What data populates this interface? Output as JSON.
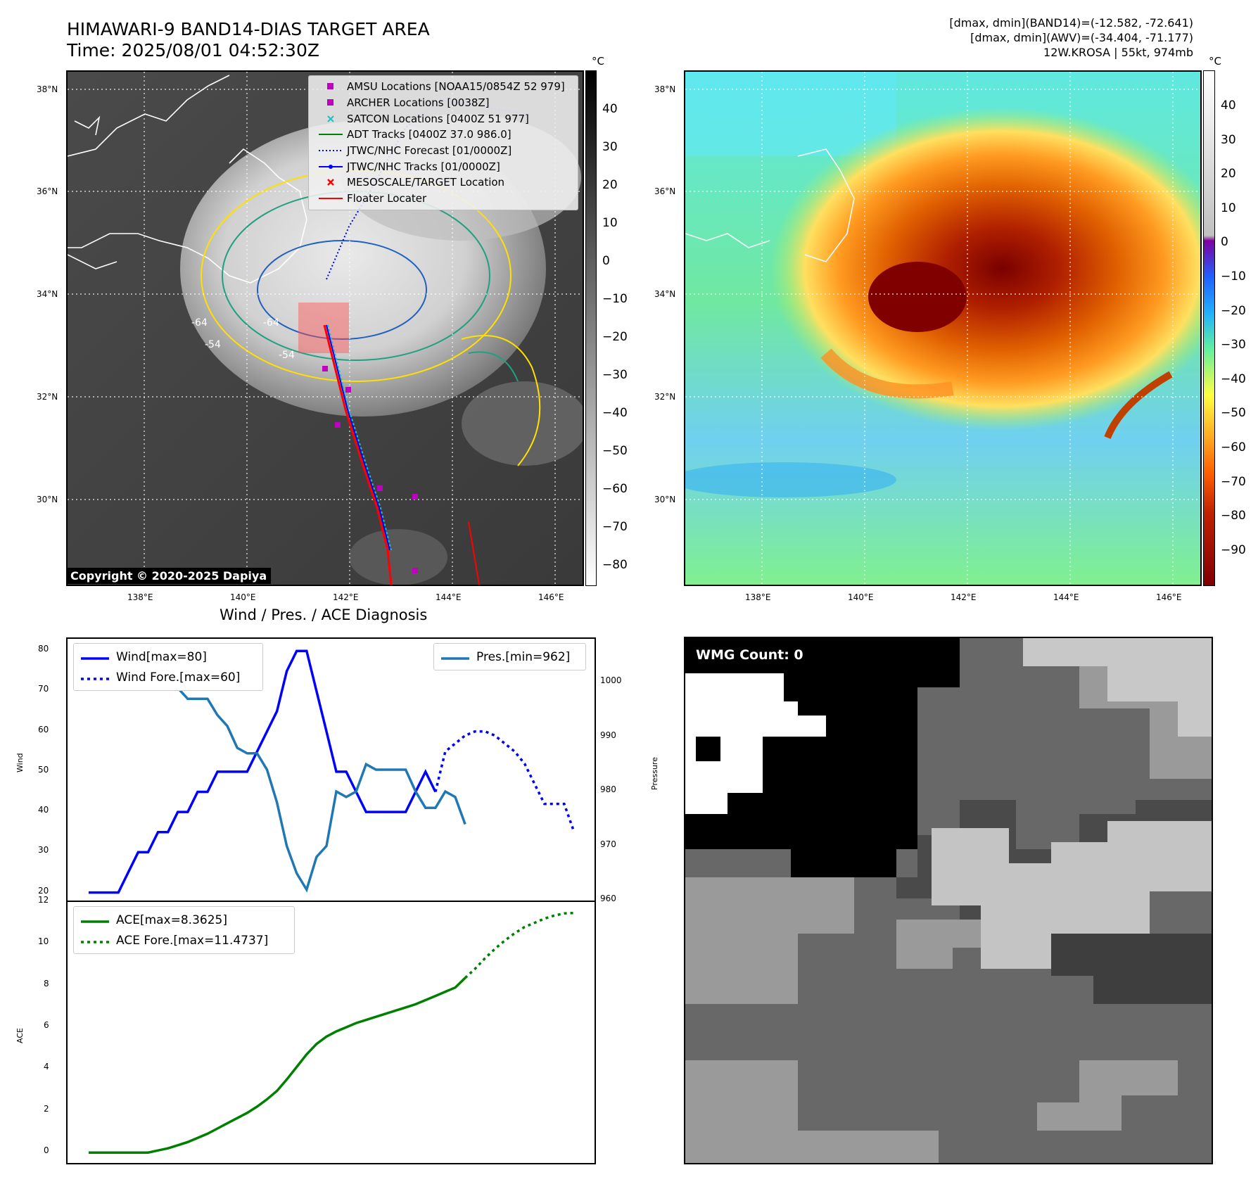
{
  "header": {
    "title": "HIMAWARI-9 BAND14-DIAS TARGET AREA",
    "time": "Time: 2025/08/01 04:52:30Z",
    "stats_band14": "[dmax, dmin](BAND14)=(-12.582, -72.641)",
    "stats_awv": "[dmax, dmin](AWV)=(-34.404, -71.177)",
    "storm": "12W.KROSA | 55kt, 974mb"
  },
  "map": {
    "lat_labels": [
      "38°N",
      "36°N",
      "34°N",
      "32°N",
      "30°N"
    ],
    "lon_labels": [
      "138°E",
      "140°E",
      "142°E",
      "144°E",
      "146°E"
    ],
    "copyright": "Copyright © 2020-2025 Dapiya",
    "contour_labels": [
      "-64",
      "-64",
      "-54",
      "-54"
    ],
    "legend": [
      {
        "label": "AMSU Locations [NOAA15/0854Z 52 979]",
        "symbol": "square",
        "color": "#c000c0"
      },
      {
        "label": "ARCHER Locations [0038Z]",
        "symbol": "square",
        "color": "#c000c0"
      },
      {
        "label": "SATCON Locations [0400Z 51 977]",
        "symbol": "x",
        "color": "#20c0c0"
      },
      {
        "label": "ADT Tracks [0400Z 37.0 986.0]",
        "symbol": "line",
        "color": "#008000"
      },
      {
        "label": "JTWC/NHC Forecast [01/0000Z]",
        "symbol": "dotted",
        "color": "#0000ff"
      },
      {
        "label": "JTWC/NHC Tracks [01/0000Z]",
        "symbol": "line-dot",
        "color": "#0000ff"
      },
      {
        "label": "MESOSCALE/TARGET Location",
        "symbol": "x",
        "color": "#ff0000"
      },
      {
        "label": "Floater Locater",
        "symbol": "line",
        "color": "#ff0000"
      }
    ]
  },
  "colorbar_ir": {
    "unit": "°C",
    "ticks": [
      "40",
      "30",
      "20",
      "10",
      "0",
      "−10",
      "−20",
      "−30",
      "−40",
      "−50",
      "−60",
      "−70",
      "−80"
    ]
  },
  "colorbar_wv": {
    "unit": "°C",
    "ticks": [
      "40",
      "30",
      "20",
      "10",
      "0",
      "−10",
      "−20",
      "−30",
      "−40",
      "−50",
      "−60",
      "−70",
      "−80",
      "−90"
    ]
  },
  "wmg": {
    "label": "WMG Count: 0"
  },
  "chart_data": [
    {
      "type": "line",
      "title": "Wind / Pres. / ACE Diagnosis",
      "ylabel": "Wind",
      "ylabel_right": "Pressure",
      "ylim": [
        18,
        83
      ],
      "ylim_right": [
        960,
        1008
      ],
      "yticks": [
        20,
        30,
        40,
        50,
        60,
        70,
        80
      ],
      "yticks_right": [
        960,
        970,
        980,
        990,
        1000
      ],
      "series": [
        {
          "name": "Wind[max=80]",
          "color": "#0000ff",
          "style": "solid",
          "axis": "left",
          "x": [
            0,
            1,
            2,
            3,
            4,
            5,
            6,
            7,
            8,
            9,
            10,
            11,
            12,
            13,
            14,
            15,
            16,
            17,
            18,
            19,
            20,
            21,
            22,
            23,
            24,
            25,
            26,
            27,
            28,
            29,
            30,
            31,
            32,
            33,
            34,
            35
          ],
          "values": [
            20,
            20,
            20,
            20,
            25,
            30,
            30,
            35,
            35,
            40,
            40,
            45,
            45,
            50,
            50,
            50,
            50,
            55,
            60,
            65,
            75,
            80,
            80,
            70,
            60,
            50,
            50,
            45,
            40,
            40,
            40,
            40,
            40,
            45,
            50,
            45
          ]
        },
        {
          "name": "Wind Fore.[max=60]",
          "color": "#0000ff",
          "style": "dotted",
          "axis": "left",
          "x": [
            35,
            36,
            37,
            38,
            39,
            40,
            41,
            42,
            43,
            44,
            45,
            46,
            47,
            48,
            49
          ],
          "values": [
            45,
            55,
            57,
            59,
            60,
            60,
            59,
            57,
            55,
            52,
            47,
            42,
            42,
            42,
            35
          ]
        },
        {
          "name": "Pres.[min=962]",
          "color": "#1f77b4",
          "style": "solid",
          "axis": "right",
          "x": [
            0,
            1,
            2,
            3,
            4,
            5,
            6,
            7,
            8,
            9,
            10,
            11,
            12,
            13,
            14,
            15,
            16,
            17,
            18,
            19,
            20,
            21,
            22,
            23,
            24,
            25,
            26,
            27,
            28,
            29,
            30,
            31,
            32,
            33,
            34,
            35,
            36,
            37,
            38
          ],
          "values": [
            1003,
            1003,
            1003,
            1003,
            1002,
            1002,
            1001,
            1001,
            999,
            999,
            997,
            997,
            997,
            994,
            992,
            988,
            987,
            987,
            984,
            978,
            970,
            965,
            962,
            968,
            970,
            980,
            979,
            980,
            985,
            984,
            984,
            984,
            984,
            980,
            977,
            977,
            980,
            979,
            974
          ]
        }
      ]
    },
    {
      "type": "line",
      "ylabel": "ACE",
      "ylim": [
        -0.5,
        12
      ],
      "yticks": [
        0,
        2,
        4,
        6,
        8,
        10,
        12
      ],
      "series": [
        {
          "name": "ACE[max=8.3625]",
          "color": "#008000",
          "style": "solid",
          "x": [
            0,
            1,
            2,
            3,
            4,
            5,
            6,
            7,
            8,
            9,
            10,
            11,
            12,
            13,
            14,
            15,
            16,
            17,
            18,
            19,
            20,
            21,
            22,
            23,
            24,
            25,
            26,
            27,
            28,
            29,
            30,
            31,
            32,
            33,
            34,
            35,
            36,
            37,
            38
          ],
          "values": [
            0,
            0,
            0,
            0,
            0,
            0,
            0,
            0.1,
            0.2,
            0.35,
            0.5,
            0.7,
            0.9,
            1.15,
            1.4,
            1.65,
            1.9,
            2.2,
            2.55,
            2.95,
            3.5,
            4.1,
            4.7,
            5.2,
            5.55,
            5.8,
            6.0,
            6.2,
            6.35,
            6.5,
            6.65,
            6.8,
            6.95,
            7.1,
            7.3,
            7.5,
            7.7,
            7.9,
            8.36
          ]
        },
        {
          "name": "ACE Fore.[max=11.4737]",
          "color": "#008000",
          "style": "dotted",
          "x": [
            38,
            39,
            40,
            41,
            42,
            43,
            44,
            45,
            46,
            47,
            48,
            49
          ],
          "values": [
            8.36,
            8.8,
            9.3,
            9.75,
            10.15,
            10.5,
            10.8,
            11.0,
            11.2,
            11.35,
            11.45,
            11.47
          ]
        }
      ]
    }
  ]
}
